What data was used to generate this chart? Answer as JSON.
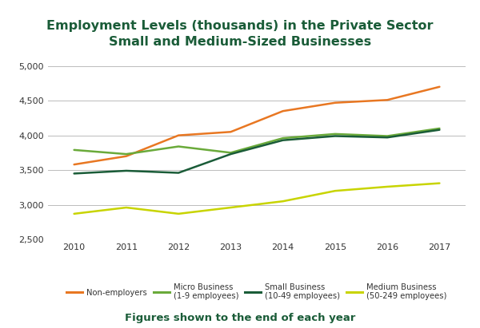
{
  "title_line1": "Employment Levels (thousands) in the Private Sector",
  "title_line2": "Small and Medium-Sized Businesses",
  "subtitle": "Figures shown to the end of each year",
  "years": [
    2010,
    2011,
    2012,
    2013,
    2014,
    2015,
    2016,
    2017
  ],
  "series": {
    "Non-employers": {
      "values": [
        3580,
        3700,
        4000,
        4050,
        4350,
        4470,
        4510,
        4700
      ],
      "color": "#E87722",
      "linewidth": 1.8,
      "label": "Non-employers"
    },
    "Micro Business": {
      "values": [
        3790,
        3730,
        3840,
        3750,
        3960,
        4020,
        3990,
        4100
      ],
      "color": "#6aaa3a",
      "linewidth": 1.8,
      "label": "Micro Business\n(1-9 employees)"
    },
    "Small Business": {
      "values": [
        3450,
        3490,
        3460,
        3730,
        3930,
        3990,
        3970,
        4080
      ],
      "color": "#1a5c38",
      "linewidth": 1.8,
      "label": "Small Business\n(10-49 employees)"
    },
    "Medium Business": {
      "values": [
        2870,
        2960,
        2870,
        2960,
        3050,
        3200,
        3260,
        3310
      ],
      "color": "#c8d400",
      "linewidth": 1.8,
      "label": "Medium Business\n(50-249 employees)"
    }
  },
  "ylim": [
    2500,
    5100
  ],
  "yticks": [
    2500,
    3000,
    3500,
    4000,
    4500,
    5000
  ],
  "ytick_labels": [
    "2,500",
    "3,000",
    "3,500",
    "4,000",
    "4,500",
    "5,000"
  ],
  "background_color": "#ffffff",
  "grid_color": "#bbbbbb",
  "title_color": "#1a5c38",
  "axis_label_color": "#333333",
  "legend_label_color": "#333333",
  "subtitle_color": "#1a5c38",
  "subtitle_fontsize": 9.5,
  "title_fontsize": 11.5
}
